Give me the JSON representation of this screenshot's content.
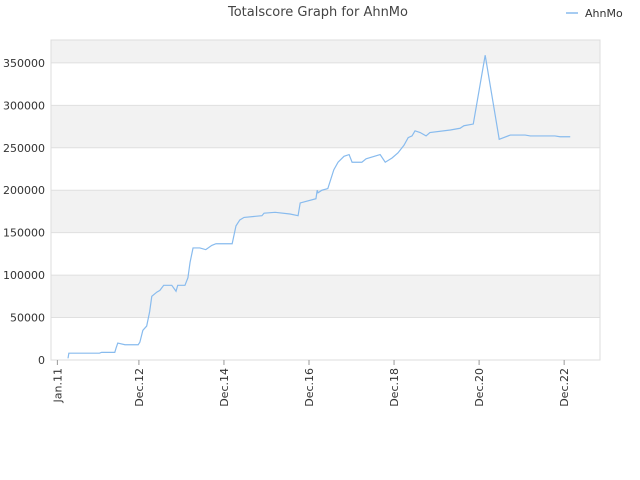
{
  "chart_data": {
    "type": "line",
    "title": "Totalscore Graph for AhnMo",
    "x": [
      2011.25,
      2011.27,
      2011.99,
      2012.04,
      2012.35,
      2012.38,
      2012.42,
      2012.59,
      2012.9,
      2012.94,
      2013.01,
      2013.1,
      2013.17,
      2013.22,
      2013.34,
      2013.41,
      2013.5,
      2013.69,
      2013.79,
      2013.83,
      2014.0,
      2014.07,
      2014.12,
      2014.19,
      2014.35,
      2014.49,
      2014.63,
      2014.73,
      2015.11,
      2015.2,
      2015.29,
      2015.39,
      2015.81,
      2015.86,
      2016.12,
      2016.47,
      2016.66,
      2016.71,
      2017.08,
      2017.11,
      2017.13,
      2017.22,
      2017.36,
      2017.5,
      2017.6,
      2017.74,
      2017.86,
      2017.93,
      2018.16,
      2018.26,
      2018.59,
      2018.71,
      2018.87,
      2019.01,
      2019.15,
      2019.25,
      2019.34,
      2019.41,
      2019.53,
      2019.67,
      2019.76,
      2020.24,
      2020.47,
      2020.56,
      2020.78,
      2021.06,
      2021.39,
      2021.65,
      2022.0,
      2022.12,
      2022.7,
      2022.82,
      2023.06
    ],
    "series": [
      {
        "name": "AhnMo",
        "color": "#88bbee",
        "values": [
          2000,
          8000,
          8000,
          9000,
          9000,
          14000,
          20000,
          18000,
          18000,
          21000,
          35000,
          40000,
          57000,
          75000,
          80000,
          82000,
          88000,
          88000,
          81000,
          88000,
          88000,
          97000,
          115000,
          132000,
          132000,
          130000,
          135000,
          137000,
          137000,
          158000,
          165000,
          168000,
          170000,
          173000,
          174000,
          172000,
          170000,
          185000,
          190000,
          200000,
          197000,
          200000,
          202000,
          224000,
          233000,
          240000,
          242000,
          233000,
          233000,
          237000,
          242000,
          233000,
          238000,
          244000,
          253000,
          262000,
          264000,
          270000,
          268000,
          264000,
          268000,
          271000,
          273000,
          276000,
          278000,
          359000,
          260000,
          265000,
          265000,
          264000,
          264000,
          263000,
          263000
        ]
      }
    ],
    "xlim": [
      2010.85,
      2023.76
    ],
    "xticks": [
      {
        "value": 2011.0,
        "label": "Jan.11"
      },
      {
        "value": 2012.917,
        "label": "Dec.12"
      },
      {
        "value": 2014.917,
        "label": "Dec.14"
      },
      {
        "value": 2016.917,
        "label": "Dec.16"
      },
      {
        "value": 2018.917,
        "label": "Dec.18"
      },
      {
        "value": 2020.917,
        "label": "Dec.20"
      },
      {
        "value": 2022.917,
        "label": "Dec.22"
      }
    ],
    "ylim": [
      0,
      377000
    ],
    "yticks": [
      0,
      50000,
      100000,
      150000,
      200000,
      250000,
      300000,
      350000
    ],
    "grid": true,
    "legend": "top-right"
  }
}
